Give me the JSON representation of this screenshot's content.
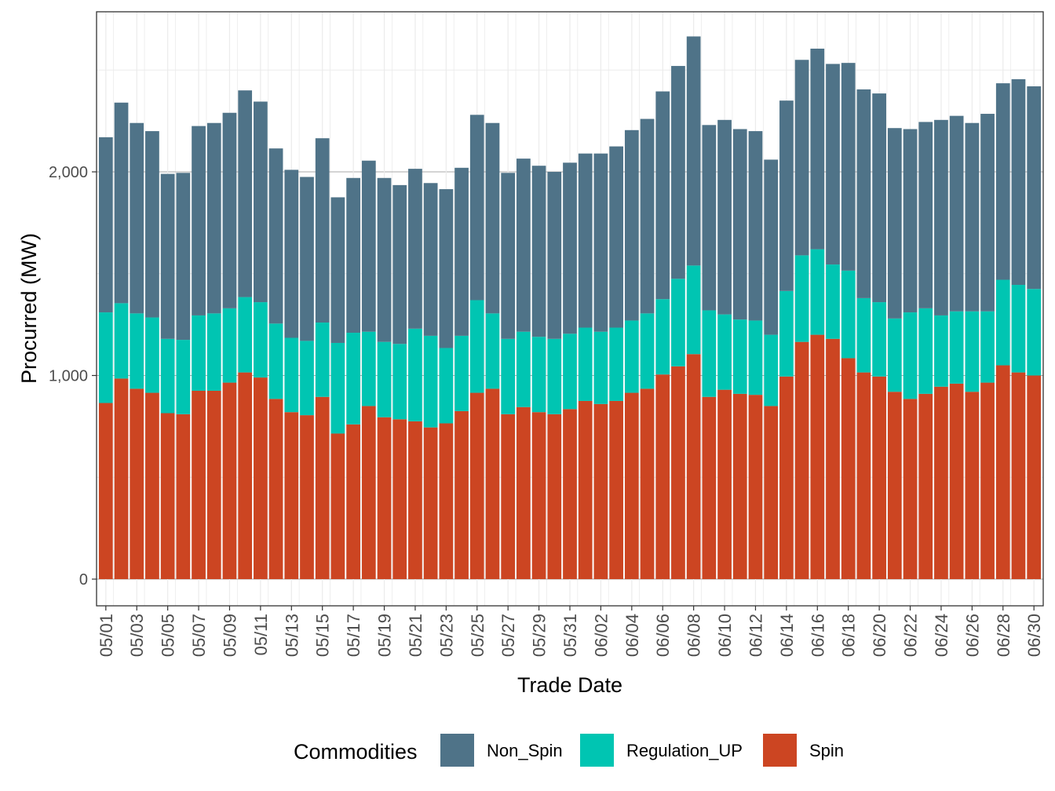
{
  "chart_data": {
    "type": "bar",
    "stacked": true,
    "title": "",
    "xlabel": "Trade Date",
    "ylabel": "Procurred (MW)",
    "ylim": [
      -130,
      2780
    ],
    "yticks": [
      0,
      1000,
      2000
    ],
    "ytick_labels": [
      "0",
      "1,000",
      "2,000"
    ],
    "categories": [
      "05/01",
      "05/02",
      "05/03",
      "05/04",
      "05/05",
      "05/06",
      "05/07",
      "05/08",
      "05/09",
      "05/10",
      "05/11",
      "05/12",
      "05/13",
      "05/14",
      "05/15",
      "05/16",
      "05/17",
      "05/18",
      "05/19",
      "05/20",
      "05/21",
      "05/22",
      "05/23",
      "05/24",
      "05/25",
      "05/26",
      "05/27",
      "05/28",
      "05/29",
      "05/30",
      "05/31",
      "06/01",
      "06/02",
      "06/03",
      "06/04",
      "06/05",
      "06/06",
      "06/07",
      "06/08",
      "06/09",
      "06/10",
      "06/11",
      "06/12",
      "06/13",
      "06/14",
      "06/15",
      "06/16",
      "06/17",
      "06/18",
      "06/19",
      "06/20",
      "06/21",
      "06/22",
      "06/23",
      "06/24",
      "06/25",
      "06/26",
      "06/27",
      "06/28",
      "06/29",
      "06/30"
    ],
    "xtick_labels": [
      "05/01",
      "05/03",
      "05/05",
      "05/07",
      "05/09",
      "05/11",
      "05/13",
      "05/15",
      "05/17",
      "05/19",
      "05/21",
      "05/23",
      "05/25",
      "05/27",
      "05/29",
      "05/31",
      "06/02",
      "06/04",
      "06/06",
      "06/08",
      "06/10",
      "06/12",
      "06/14",
      "06/16",
      "06/18",
      "06/20",
      "06/22",
      "06/24",
      "06/26",
      "06/28",
      "06/30"
    ],
    "legend": {
      "title": "Commodities",
      "position": "bottom"
    },
    "series": [
      {
        "name": "Spin",
        "color": "#CC4522",
        "values": [
          865,
          985,
          935,
          915,
          815,
          810,
          925,
          925,
          965,
          1015,
          990,
          885,
          820,
          805,
          895,
          715,
          760,
          850,
          795,
          785,
          775,
          745,
          765,
          825,
          915,
          935,
          810,
          845,
          820,
          810,
          835,
          875,
          860,
          875,
          915,
          935,
          1005,
          1045,
          1105,
          895,
          930,
          910,
          905,
          850,
          995,
          1165,
          1200,
          1180,
          1085,
          1015,
          995,
          920,
          885,
          910,
          945,
          960,
          920,
          965,
          1050,
          1015,
          1000
        ]
      },
      {
        "name": "Regulation_UP",
        "color": "#00C5B2",
        "values": [
          445,
          370,
          370,
          370,
          365,
          365,
          370,
          380,
          365,
          370,
          370,
          370,
          365,
          365,
          365,
          445,
          450,
          365,
          370,
          370,
          455,
          450,
          370,
          370,
          455,
          370,
          370,
          370,
          370,
          370,
          370,
          360,
          355,
          360,
          355,
          370,
          370,
          430,
          435,
          425,
          370,
          365,
          365,
          350,
          420,
          425,
          420,
          365,
          430,
          365,
          365,
          360,
          425,
          420,
          350,
          355,
          395,
          350,
          420,
          430,
          425
        ]
      },
      {
        "name": "Non_Spin",
        "color": "#4F7388",
        "values": [
          860,
          985,
          935,
          915,
          810,
          820,
          930,
          935,
          960,
          1015,
          985,
          860,
          825,
          805,
          905,
          715,
          760,
          840,
          805,
          780,
          785,
          750,
          780,
          825,
          910,
          935,
          815,
          850,
          840,
          820,
          840,
          855,
          875,
          890,
          935,
          955,
          1020,
          1045,
          1125,
          910,
          955,
          935,
          930,
          860,
          935,
          960,
          985,
          985,
          1020,
          1025,
          1025,
          935,
          900,
          915,
          960,
          960,
          925,
          970,
          965,
          1010,
          995
        ]
      }
    ]
  }
}
